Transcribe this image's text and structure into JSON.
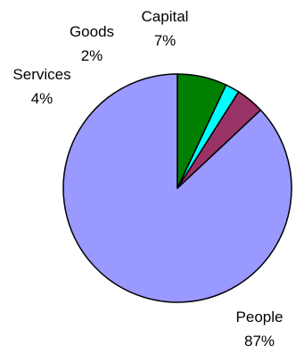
{
  "chart_data": {
    "type": "pie",
    "title": "",
    "slices": [
      {
        "name": "People",
        "value": 87,
        "label_value": "87%",
        "color": "#9999ff"
      },
      {
        "name": "Services",
        "value": 4,
        "label_value": "4%",
        "color": "#993366"
      },
      {
        "name": "Goods",
        "value": 2,
        "label_value": "2%",
        "color": "#00ffff"
      },
      {
        "name": "Capital",
        "value": 7,
        "label_value": "7%",
        "color": "#007f00"
      }
    ],
    "start_angle_deg": 0,
    "direction": "counterclockwise",
    "stroke_color": "#000000",
    "legend": "none"
  }
}
